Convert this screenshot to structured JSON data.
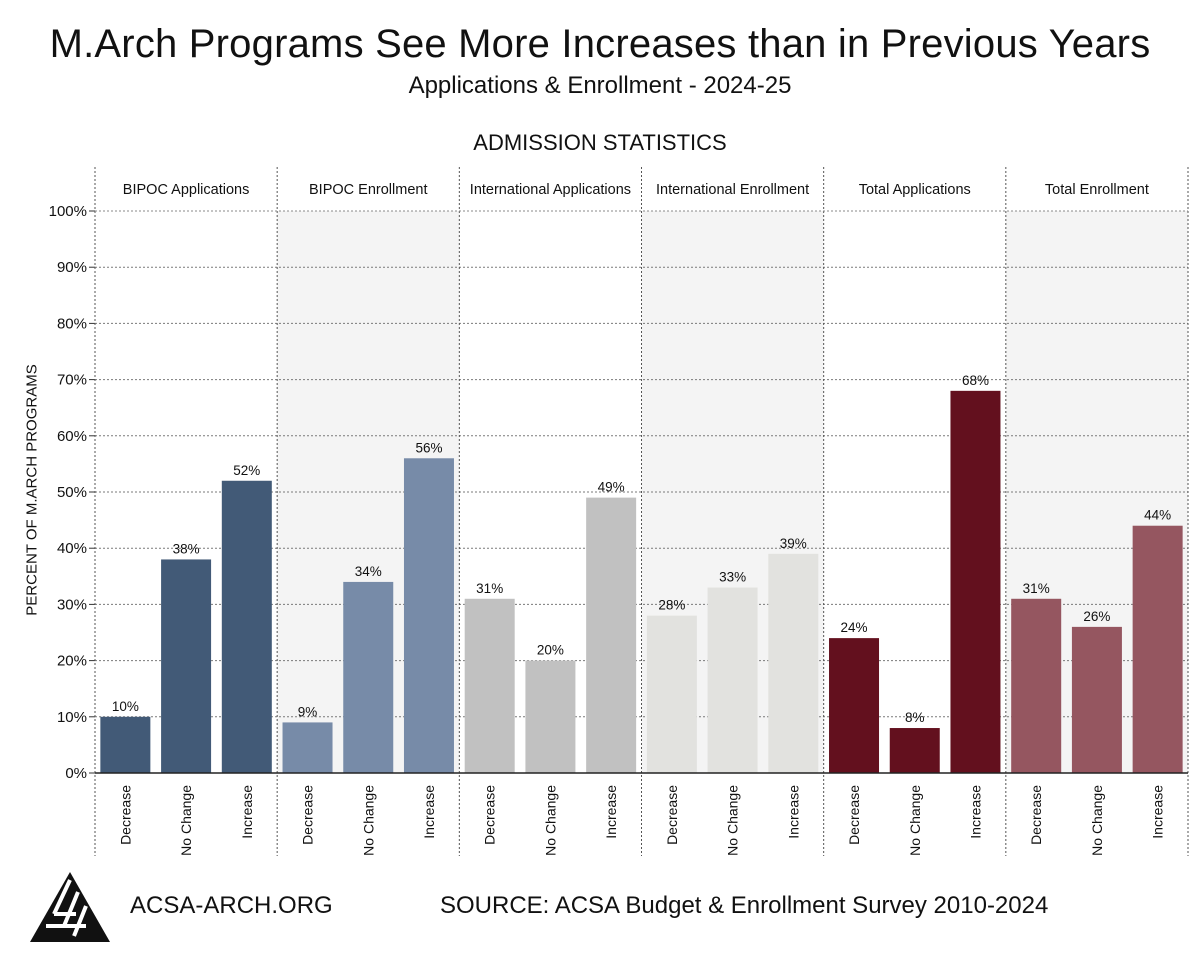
{
  "header": {
    "title": "M.Arch Programs See More Increases than in Previous Years",
    "subtitle": "Applications & Enrollment - 2024-25",
    "section_title": "ADMISSION STATISTICS"
  },
  "footer": {
    "site": "ACSA-ARCH.ORG",
    "source": "SOURCE: ACSA Budget & Enrollment Survey 2010-2024"
  },
  "chart_data": {
    "type": "bar",
    "ylabel": "PERCENT OF M.ARCH PROGRAMS",
    "ylim": [
      0,
      100
    ],
    "yticks": [
      "0%",
      "10%",
      "20%",
      "30%",
      "40%",
      "50%",
      "60%",
      "70%",
      "80%",
      "90%",
      "100%"
    ],
    "grid": true,
    "categories": [
      "Decrease",
      "No Change",
      "Increase"
    ],
    "panels": [
      {
        "name": "BIPOC Applications",
        "color": "#425a77",
        "values": [
          10,
          38,
          52
        ],
        "labels": [
          "10%",
          "38%",
          "52%"
        ]
      },
      {
        "name": "BIPOC Enrollment",
        "color": "#778ba8",
        "values": [
          9,
          34,
          56
        ],
        "labels": [
          "9%",
          "34%",
          "56%"
        ]
      },
      {
        "name": "International Applications",
        "color": "#c1c1c1",
        "values": [
          31,
          20,
          49
        ],
        "labels": [
          "31%",
          "20%",
          "49%"
        ]
      },
      {
        "name": "International Enrollment",
        "color": "#e2e2df",
        "values": [
          28,
          33,
          39
        ],
        "labels": [
          "28%",
          "33%",
          "39%"
        ]
      },
      {
        "name": "Total Applications",
        "color": "#63101e",
        "values": [
          24,
          8,
          68
        ],
        "labels": [
          "24%",
          "8%",
          "68%"
        ]
      },
      {
        "name": "Total Enrollment",
        "color": "#955660",
        "values": [
          31,
          26,
          44
        ],
        "labels": [
          "31%",
          "26%",
          "44%"
        ]
      }
    ]
  }
}
